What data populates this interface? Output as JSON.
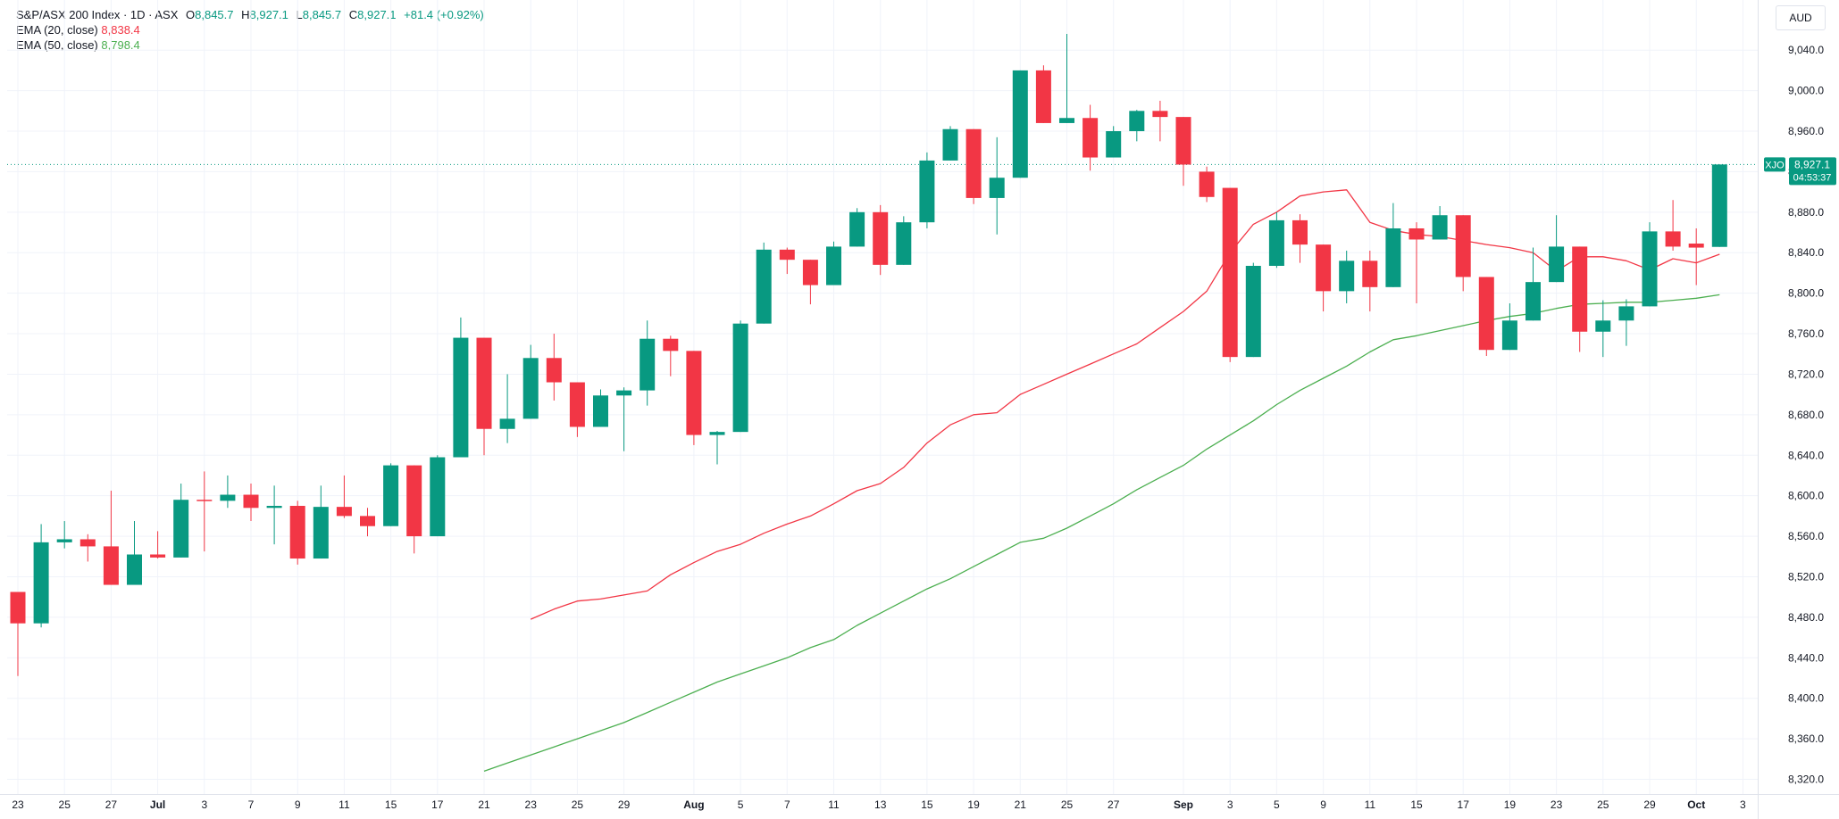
{
  "legend": {
    "symbol_title": "S&P/ASX 200 Index · 1D · ASX",
    "ohlc": {
      "o_label": "O",
      "o_value": "8,845.7",
      "h_label": "H",
      "h_value": "8,927.1",
      "l_label": "L",
      "l_value": "8,845.7",
      "c_label": "C",
      "c_value": "8,927.1",
      "change": "+81.4 (+0.92%)"
    },
    "ema20_label": "EMA (20, close)",
    "ema20_value": "8,838.4",
    "ema50_label": "EMA (50, close)",
    "ema50_value": "8,798.4"
  },
  "currency_button": "AUD",
  "price_tag": {
    "ticker": "XJO",
    "price": "8,927.1",
    "countdown": "04:53:37",
    "value": 8927.1
  },
  "colors": {
    "up": "#089981",
    "down": "#f23645",
    "ema20": "#f23645",
    "ema50": "#4caf50",
    "axis_text": "#131722",
    "grid": "#f0f3fa"
  },
  "chart_data": {
    "type": "candlestick",
    "y_axis": {
      "ylim": [
        8300,
        9080
      ],
      "ticks": [
        8320,
        8360,
        8400,
        8440,
        8480,
        8520,
        8560,
        8600,
        8640,
        8680,
        8720,
        8760,
        8800,
        8840,
        8880,
        8920,
        8960,
        9000,
        9040
      ],
      "tick_labels": [
        "8,320.0",
        "8,360.0",
        "8,400.0",
        "8,440.0",
        "8,480.0",
        "8,520.0",
        "8,560.0",
        "8,600.0",
        "8,640.0",
        "8,680.0",
        "8,720.0",
        "8,760.0",
        "8,800.0",
        "8,840.0",
        "8,880.0",
        "8,920.0",
        "8,960.0",
        "9,000.0",
        "9,040.0"
      ]
    },
    "x_axis": {
      "tick_labels": [
        {
          "label": "23",
          "i": 0
        },
        {
          "label": "25",
          "i": 2
        },
        {
          "label": "27",
          "i": 4
        },
        {
          "label": "Jul",
          "i": 6,
          "bold": true
        },
        {
          "label": "3",
          "i": 8
        },
        {
          "label": "7",
          "i": 10
        },
        {
          "label": "9",
          "i": 12
        },
        {
          "label": "11",
          "i": 14
        },
        {
          "label": "15",
          "i": 16
        },
        {
          "label": "17",
          "i": 18
        },
        {
          "label": "21",
          "i": 20
        },
        {
          "label": "23",
          "i": 22
        },
        {
          "label": "25",
          "i": 24
        },
        {
          "label": "29",
          "i": 26
        },
        {
          "label": "Aug",
          "i": 29,
          "bold": true
        },
        {
          "label": "5",
          "i": 31
        },
        {
          "label": "7",
          "i": 33
        },
        {
          "label": "11",
          "i": 35
        },
        {
          "label": "13",
          "i": 37
        },
        {
          "label": "15",
          "i": 39
        },
        {
          "label": "19",
          "i": 41
        },
        {
          "label": "21",
          "i": 43
        },
        {
          "label": "25",
          "i": 45
        },
        {
          "label": "27",
          "i": 47
        },
        {
          "label": "Sep",
          "i": 50,
          "bold": true
        },
        {
          "label": "3",
          "i": 52
        },
        {
          "label": "5",
          "i": 54
        },
        {
          "label": "9",
          "i": 56
        },
        {
          "label": "11",
          "i": 58
        },
        {
          "label": "15",
          "i": 60
        },
        {
          "label": "17",
          "i": 62
        },
        {
          "label": "19",
          "i": 64
        },
        {
          "label": "23",
          "i": 66
        },
        {
          "label": "25",
          "i": 68
        },
        {
          "label": "29",
          "i": 70
        },
        {
          "label": "Oct",
          "i": 72,
          "bold": true
        },
        {
          "label": "3",
          "i": 74
        }
      ]
    },
    "last_price_line": 8927.1,
    "candles": [
      {
        "o": 8505,
        "h": 8505,
        "l": 8422,
        "c": 8474
      },
      {
        "o": 8474,
        "h": 8572,
        "l": 8470,
        "c": 8554
      },
      {
        "o": 8554,
        "h": 8575,
        "l": 8548,
        "c": 8557
      },
      {
        "o": 8557,
        "h": 8562,
        "l": 8535,
        "c": 8550
      },
      {
        "o": 8550,
        "h": 8605,
        "l": 8512,
        "c": 8512
      },
      {
        "o": 8512,
        "h": 8575,
        "l": 8512,
        "c": 8542
      },
      {
        "o": 8542,
        "h": 8565,
        "l": 8538,
        "c": 8539
      },
      {
        "o": 8539,
        "h": 8612,
        "l": 8539,
        "c": 8596
      },
      {
        "o": 8596,
        "h": 8624,
        "l": 8545,
        "c": 8595
      },
      {
        "o": 8595,
        "h": 8620,
        "l": 8588,
        "c": 8601
      },
      {
        "o": 8601,
        "h": 8612,
        "l": 8575,
        "c": 8588
      },
      {
        "o": 8588,
        "h": 8610,
        "l": 8552,
        "c": 8590
      },
      {
        "o": 8590,
        "h": 8595,
        "l": 8532,
        "c": 8538
      },
      {
        "o": 8538,
        "h": 8610,
        "l": 8538,
        "c": 8589
      },
      {
        "o": 8589,
        "h": 8620,
        "l": 8578,
        "c": 8580
      },
      {
        "o": 8580,
        "h": 8588,
        "l": 8560,
        "c": 8570
      },
      {
        "o": 8570,
        "h": 8632,
        "l": 8570,
        "c": 8630
      },
      {
        "o": 8630,
        "h": 8630,
        "l": 8543,
        "c": 8560
      },
      {
        "o": 8560,
        "h": 8640,
        "l": 8560,
        "c": 8638
      },
      {
        "o": 8638,
        "h": 8776,
        "l": 8638,
        "c": 8756
      },
      {
        "o": 8756,
        "h": 8756,
        "l": 8640,
        "c": 8666
      },
      {
        "o": 8666,
        "h": 8720,
        "l": 8652,
        "c": 8676
      },
      {
        "o": 8676,
        "h": 8749,
        "l": 8676,
        "c": 8736
      },
      {
        "o": 8736,
        "h": 8760,
        "l": 8694,
        "c": 8712
      },
      {
        "o": 8712,
        "h": 8712,
        "l": 8658,
        "c": 8668
      },
      {
        "o": 8668,
        "h": 8705,
        "l": 8668,
        "c": 8699
      },
      {
        "o": 8699,
        "h": 8707,
        "l": 8644,
        "c": 8704
      },
      {
        "o": 8704,
        "h": 8773,
        "l": 8689,
        "c": 8755
      },
      {
        "o": 8755,
        "h": 8758,
        "l": 8718,
        "c": 8743
      },
      {
        "o": 8743,
        "h": 8743,
        "l": 8650,
        "c": 8660
      },
      {
        "o": 8660,
        "h": 8664,
        "l": 8631,
        "c": 8663
      },
      {
        "o": 8663,
        "h": 8773,
        "l": 8663,
        "c": 8770
      },
      {
        "o": 8770,
        "h": 8850,
        "l": 8770,
        "c": 8843
      },
      {
        "o": 8843,
        "h": 8845,
        "l": 8819,
        "c": 8833
      },
      {
        "o": 8833,
        "h": 8833,
        "l": 8789,
        "c": 8808
      },
      {
        "o": 8808,
        "h": 8851,
        "l": 8808,
        "c": 8846
      },
      {
        "o": 8846,
        "h": 8884,
        "l": 8846,
        "c": 8880
      },
      {
        "o": 8880,
        "h": 8887,
        "l": 8818,
        "c": 8828
      },
      {
        "o": 8828,
        "h": 8876,
        "l": 8828,
        "c": 8870
      },
      {
        "o": 8870,
        "h": 8939,
        "l": 8864,
        "c": 8931
      },
      {
        "o": 8931,
        "h": 8965,
        "l": 8931,
        "c": 8962
      },
      {
        "o": 8962,
        "h": 8962,
        "l": 8888,
        "c": 8894
      },
      {
        "o": 8894,
        "h": 8954,
        "l": 8858,
        "c": 8914
      },
      {
        "o": 8914,
        "h": 9020,
        "l": 8914,
        "c": 9020
      },
      {
        "o": 9020,
        "h": 9025,
        "l": 8968,
        "c": 8968
      },
      {
        "o": 8968,
        "h": 9056,
        "l": 8968,
        "c": 8973
      },
      {
        "o": 8973,
        "h": 8986,
        "l": 8921,
        "c": 8934
      },
      {
        "o": 8934,
        "h": 8965,
        "l": 8934,
        "c": 8960
      },
      {
        "o": 8960,
        "h": 8981,
        "l": 8950,
        "c": 8980
      },
      {
        "o": 8980,
        "h": 8990,
        "l": 8950,
        "c": 8974
      },
      {
        "o": 8974,
        "h": 8974,
        "l": 8906,
        "c": 8927
      },
      {
        "o": 8920,
        "h": 8925,
        "l": 8890,
        "c": 8895
      },
      {
        "o": 8904,
        "h": 8904,
        "l": 8732,
        "c": 8737
      },
      {
        "o": 8737,
        "h": 8830,
        "l": 8737,
        "c": 8827
      },
      {
        "o": 8827,
        "h": 8880,
        "l": 8825,
        "c": 8872
      },
      {
        "o": 8872,
        "h": 8878,
        "l": 8830,
        "c": 8848
      },
      {
        "o": 8848,
        "h": 8848,
        "l": 8782,
        "c": 8802
      },
      {
        "o": 8802,
        "h": 8842,
        "l": 8790,
        "c": 8832
      },
      {
        "o": 8832,
        "h": 8842,
        "l": 8782,
        "c": 8806
      },
      {
        "o": 8806,
        "h": 8889,
        "l": 8806,
        "c": 8864
      },
      {
        "o": 8864,
        "h": 8870,
        "l": 8790,
        "c": 8853
      },
      {
        "o": 8853,
        "h": 8886,
        "l": 8853,
        "c": 8877
      },
      {
        "o": 8877,
        "h": 8877,
        "l": 8802,
        "c": 8816
      },
      {
        "o": 8816,
        "h": 8816,
        "l": 8738,
        "c": 8744
      },
      {
        "o": 8744,
        "h": 8790,
        "l": 8744,
        "c": 8773
      },
      {
        "o": 8773,
        "h": 8845,
        "l": 8773,
        "c": 8811
      },
      {
        "o": 8811,
        "h": 8877,
        "l": 8811,
        "c": 8846
      },
      {
        "o": 8846,
        "h": 8846,
        "l": 8742,
        "c": 8762
      },
      {
        "o": 8762,
        "h": 8793,
        "l": 8737,
        "c": 8773
      },
      {
        "o": 8773,
        "h": 8794,
        "l": 8748,
        "c": 8787
      },
      {
        "o": 8787,
        "h": 8870,
        "l": 8787,
        "c": 8861
      },
      {
        "o": 8861,
        "h": 8892,
        "l": 8842,
        "c": 8846
      },
      {
        "o": 8849,
        "h": 8864,
        "l": 8808,
        "c": 8845
      },
      {
        "o": 8845.7,
        "h": 8927.1,
        "l": 8845.7,
        "c": 8927.1
      }
    ],
    "ema20": [
      8478,
      8488,
      8496,
      8498,
      8502,
      8506,
      8522,
      8534,
      8545,
      8552,
      8563,
      8572,
      8580,
      8592,
      8605,
      8612,
      8628,
      8652,
      8670,
      8680,
      8682,
      8700,
      8710,
      8720,
      8730,
      8740,
      8750,
      8766,
      8782,
      8802,
      8840,
      8868,
      8880,
      8896,
      8900,
      8902,
      8870,
      8862,
      8858,
      8856,
      8852,
      8848,
      8845,
      8840,
      8822,
      8836,
      8836,
      8832,
      8823,
      8834,
      8830,
      8838.4
    ],
    "ema20_start": 22,
    "ema50": [
      8328,
      8336,
      8344,
      8352,
      8360,
      8368,
      8376,
      8386,
      8396,
      8406,
      8416,
      8424,
      8432,
      8440,
      8450,
      8458,
      8472,
      8484,
      8496,
      8508,
      8518,
      8530,
      8542,
      8554,
      8558,
      8568,
      8580,
      8592,
      8606,
      8618,
      8630,
      8646,
      8660,
      8674,
      8690,
      8704,
      8716,
      8728,
      8742,
      8754,
      8758,
      8763,
      8768,
      8773,
      8777,
      8780,
      8785,
      8789,
      8790,
      8791,
      8791,
      8793,
      8795,
      8798.4
    ],
    "ema50_start": 20
  }
}
